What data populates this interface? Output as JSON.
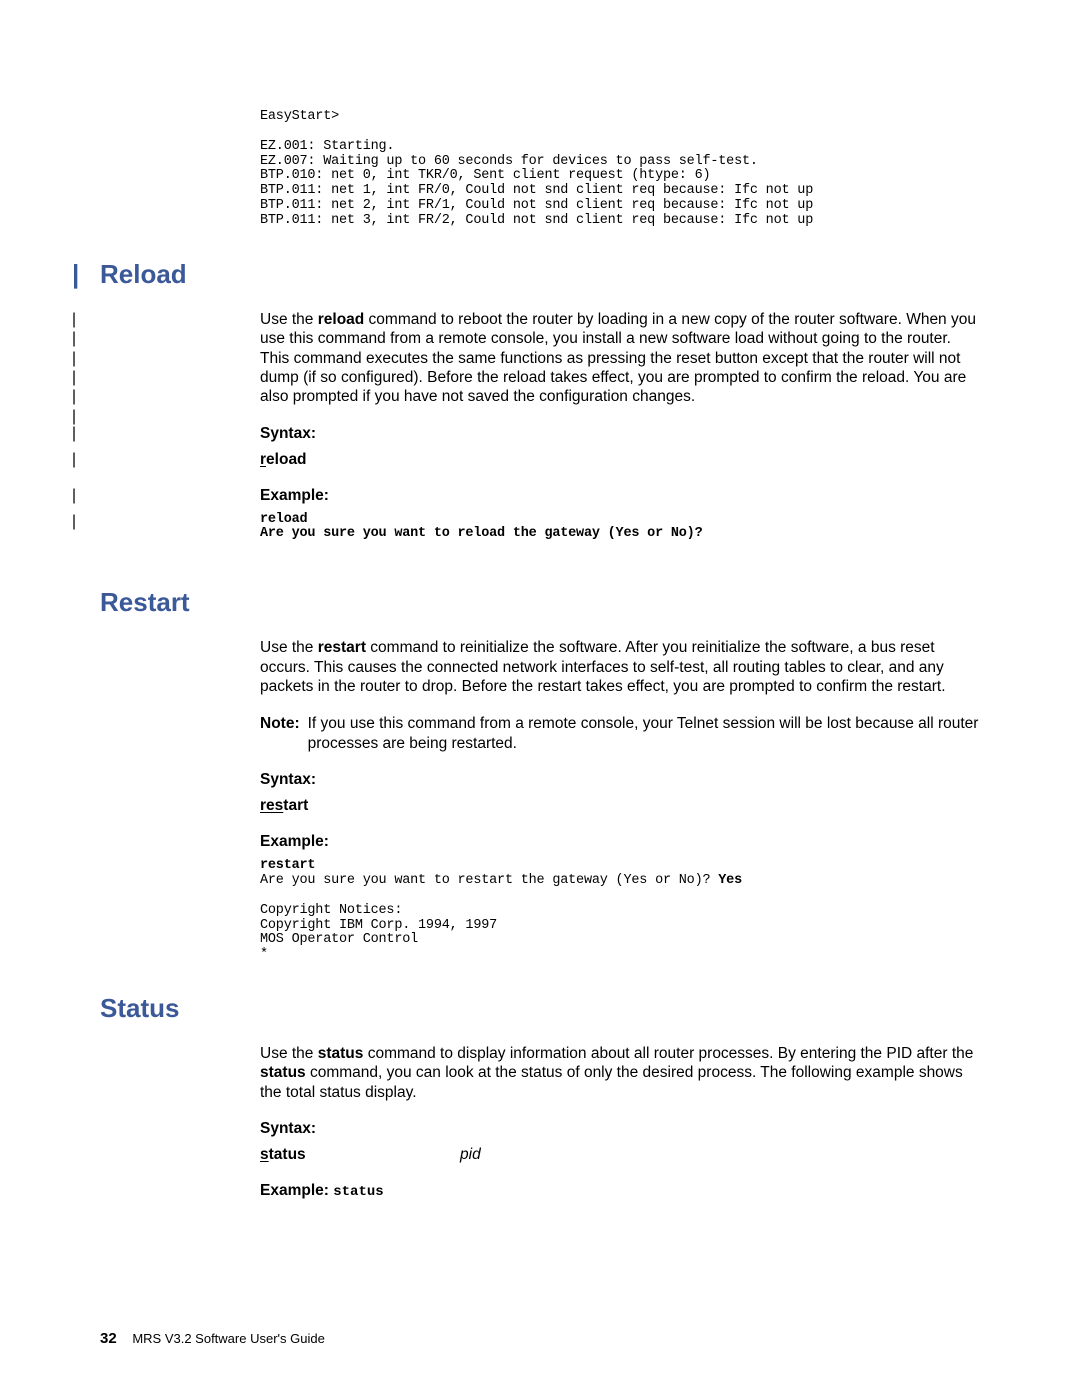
{
  "code_easystart": "EasyStart>\n\nEZ.001: Starting.\nEZ.007: Waiting up to 60 seconds for devices to pass self-test.\nBTP.010: net 0, int TKR/0, Sent client request (htype: 6)\nBTP.011: net 1, int FR/0, Could not snd client req because: Ifc not up\nBTP.011: net 2, int FR/1, Could not snd client req because: Ifc not up\nBTP.011: net 3, int FR/2, Could not snd client req because: Ifc not up",
  "sections": {
    "reload": {
      "heading": "Reload",
      "body_parts": {
        "p1a": "Use the ",
        "p1b": "reload",
        "p1c": " command to reboot the router by loading in a new copy of the router software. When you use this command from a remote console, you install a new software load without going to the router. This command executes the same functions as pressing the reset button except that the router will not dump (if so configured). Before the reload takes effect, you are prompted to confirm the reload. You are also prompted if you have not saved the configuration changes."
      },
      "syntax_label": "Syntax:",
      "syntax_cmd_underline": "r",
      "syntax_cmd_rest": "eload",
      "example_label": "Example:",
      "example_code": "reload\nAre you sure you want to reload the gateway (Yes or No)?"
    },
    "restart": {
      "heading": "Restart",
      "body_parts": {
        "p1a": "Use the ",
        "p1b": "restart",
        "p1c": " command to reinitialize the software. After you reinitialize the software, a bus reset occurs. This causes the connected network interfaces to self-test, all routing tables to clear, and any packets in the router to drop. Before the restart takes effect, you are prompted to confirm the restart."
      },
      "note_label": "Note:",
      "note_text": "If you use this command from a remote console, your Telnet session will be lost because all router processes are being restarted.",
      "syntax_label": "Syntax:",
      "syntax_cmd_underline": "res",
      "syntax_cmd_rest": "tart",
      "example_label": "Example:",
      "example_code_part1": "restart",
      "example_code_part2": "\nAre you sure you want to restart the gateway (Yes or No)? ",
      "example_code_part3": "Yes",
      "example_code_part4": "\n\nCopyright Notices:\nCopyright IBM Corp. 1994, 1997\nMOS Operator Control\n*"
    },
    "status": {
      "heading": "Status",
      "body_parts": {
        "p1a": "Use the ",
        "p1b": "status",
        "p1c": " command to display information about all router processes. By entering the PID after the ",
        "p1d": "status",
        "p1e": " command, you can look at the status of only the desired process. The following example shows the total status display."
      },
      "syntax_label": "Syntax:",
      "syntax_cmd_underline": "s",
      "syntax_cmd_rest": "tatus",
      "pid": "pid",
      "example_label": "Example: ",
      "example_cmd": "status"
    }
  },
  "footer": {
    "page_num": "32",
    "title": "MRS V3.2 Software User's Guide"
  }
}
